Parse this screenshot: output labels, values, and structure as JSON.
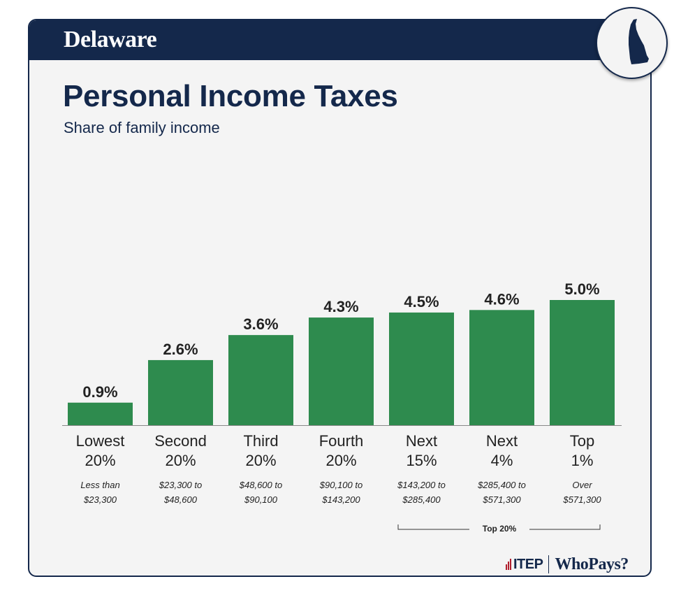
{
  "header": {
    "state": "Delaware"
  },
  "state_icon": "delaware-state-outline-icon",
  "colors": {
    "navy": "#14284b",
    "bar": "#2e8b4e",
    "background": "#f4f4f4"
  },
  "chart_data": {
    "type": "bar",
    "title": "Personal Income Taxes",
    "subtitle": "Share of family income",
    "categories": [
      "Lowest 20%",
      "Second 20%",
      "Third 20%",
      "Fourth 20%",
      "Next 15%",
      "Next 4%",
      "Top 1%"
    ],
    "category_lines": [
      [
        "Lowest",
        "20%"
      ],
      [
        "Second",
        "20%"
      ],
      [
        "Third",
        "20%"
      ],
      [
        "Fourth",
        "20%"
      ],
      [
        "Next",
        "15%"
      ],
      [
        "Next",
        "4%"
      ],
      [
        "Top",
        "1%"
      ]
    ],
    "income_ranges": [
      [
        "Less than",
        "$23,300"
      ],
      [
        "$23,300 to",
        "$48,600"
      ],
      [
        "$48,600 to",
        "$90,100"
      ],
      [
        "$90,100 to",
        "$143,200"
      ],
      [
        "$143,200 to",
        "$285,400"
      ],
      [
        "$285,400 to",
        "$571,300"
      ],
      [
        "Over",
        "$571,300"
      ]
    ],
    "values": [
      0.9,
      2.6,
      3.6,
      4.3,
      4.5,
      4.6,
      5.0
    ],
    "data_labels": [
      "0.9%",
      "2.6%",
      "3.6%",
      "4.3%",
      "4.5%",
      "4.6%",
      "5.0%"
    ],
    "ylim": [
      0,
      5.0
    ],
    "grid": false,
    "group_bracket": {
      "label": "Top 20%",
      "from_category": 4,
      "to_category": 6
    }
  },
  "footer": {
    "logo_itep": "ITEP",
    "logo_whopays": "WhoPays?"
  }
}
